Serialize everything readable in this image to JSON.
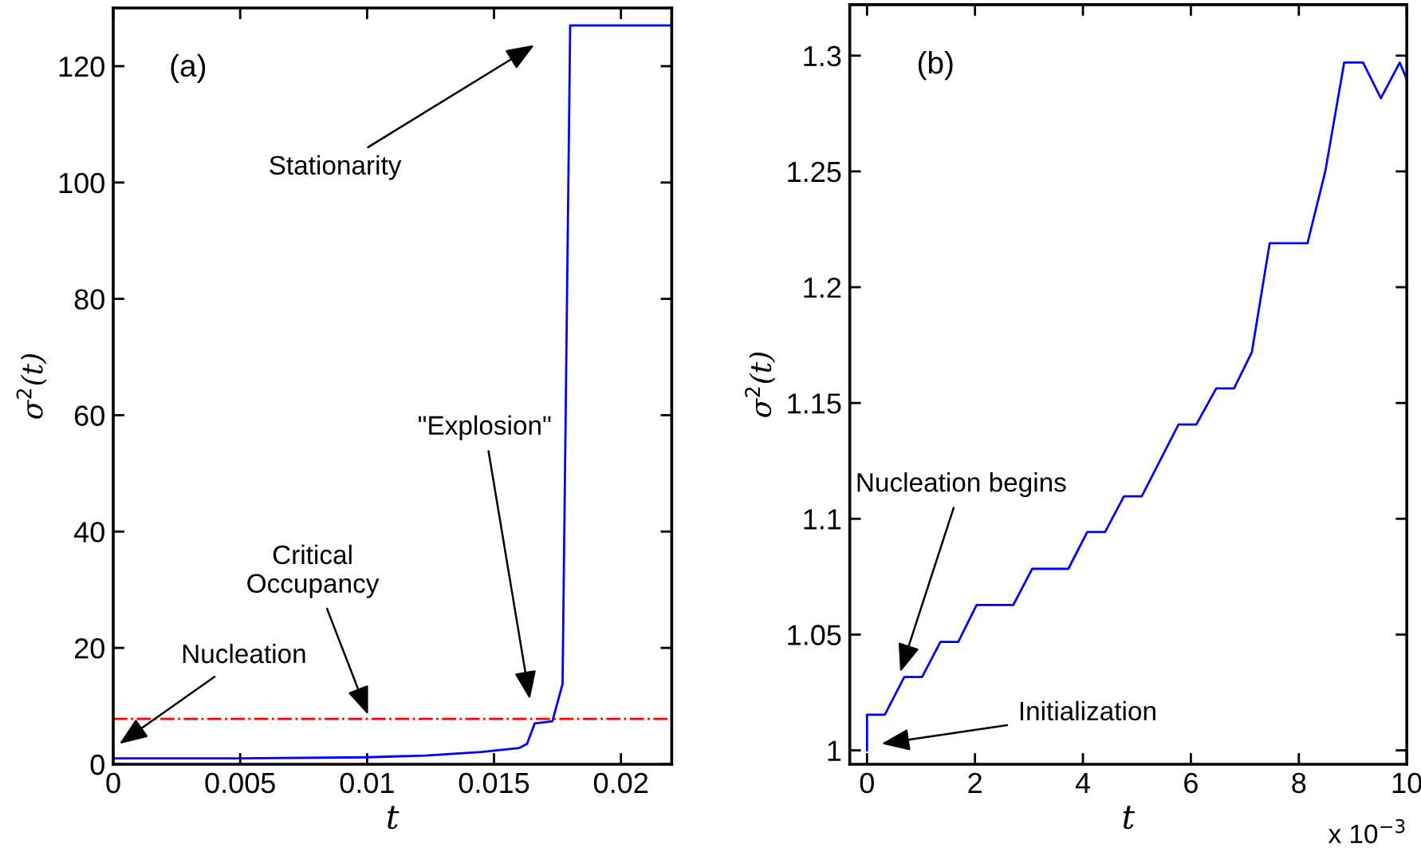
{
  "chart_data": [
    {
      "type": "line",
      "xlabel": "t",
      "ylabel": "σ$^{2}$(t)",
      "xlim": [
        0,
        0.022
      ],
      "ylim": [
        0,
        130
      ],
      "xticks": [
        0,
        0.005,
        0.01,
        0.015,
        0.02
      ],
      "yticks": [
        0,
        20,
        40,
        60,
        80,
        100,
        120
      ],
      "grid": false,
      "legend": false,
      "series": [
        {
          "color": "#0000ff",
          "x": [
            0,
            0.005,
            0.01,
            0.0123,
            0.0145,
            0.016,
            0.0163,
            0.0166,
            0.0173,
            0.0177,
            0.018,
            0.022
          ],
          "values": [
            1,
            1,
            1.2,
            1.5,
            2.1,
            2.8,
            3.5,
            7,
            7.4,
            13.8,
            127,
            127
          ]
        }
      ],
      "ref_lines": [
        {
          "axis": "y",
          "value": 7.8,
          "color": "#ff0000",
          "line_style": "dashdot"
        }
      ],
      "annotations": [
        "(a)",
        "Stationarity",
        "\"Explosion\"",
        {
          "text": "Critical\nOccupancy",
          "x": 0.0101,
          "y": 7.8
        },
        "Nucleation"
      ]
    },
    {
      "type": "line",
      "xlabel": "t",
      "ylabel": "σ$^{2}$(t)",
      "xlim": [
        -0.32,
        10
      ],
      "ylim": [
        0.994,
        1.322
      ],
      "xticks": [
        0,
        2,
        4,
        6,
        8,
        10
      ],
      "yticks": [
        1,
        1.05,
        1.1,
        1.15,
        1.2,
        1.25,
        1.3
      ],
      "grid": false,
      "legend": false,
      "series": [
        {
          "color": "#0000ff",
          "x": [
            0,
            0,
            0.33,
            0.69,
            1.02,
            1.36,
            1.69,
            2.03,
            2.71,
            3.06,
            3.73,
            4.08,
            4.41,
            4.76,
            5.09,
            5.77,
            6.1,
            6.47,
            6.8,
            7.13,
            7.46,
            8.16,
            8.49,
            8.84,
            9.19,
            9.52,
            9.87,
            10
          ],
          "values": [
            1,
            1.0154,
            1.0154,
            1.0317,
            1.0317,
            1.0468,
            1.0468,
            1.0628,
            1.0628,
            1.0784,
            1.0784,
            1.0943,
            1.0943,
            1.1097,
            1.1097,
            1.1407,
            1.1407,
            1.1563,
            1.1563,
            1.172,
            1.219,
            1.219,
            1.25,
            1.297,
            1.297,
            1.2816,
            1.297,
            1.2897
          ]
        }
      ],
      "annotations": [
        "(b)",
        "x 10$^{−3}$",
        {
          "text": "Nucleation begins",
          "x": 0.59,
          "y": 1.032
        },
        "Initialization"
      ]
    }
  ]
}
